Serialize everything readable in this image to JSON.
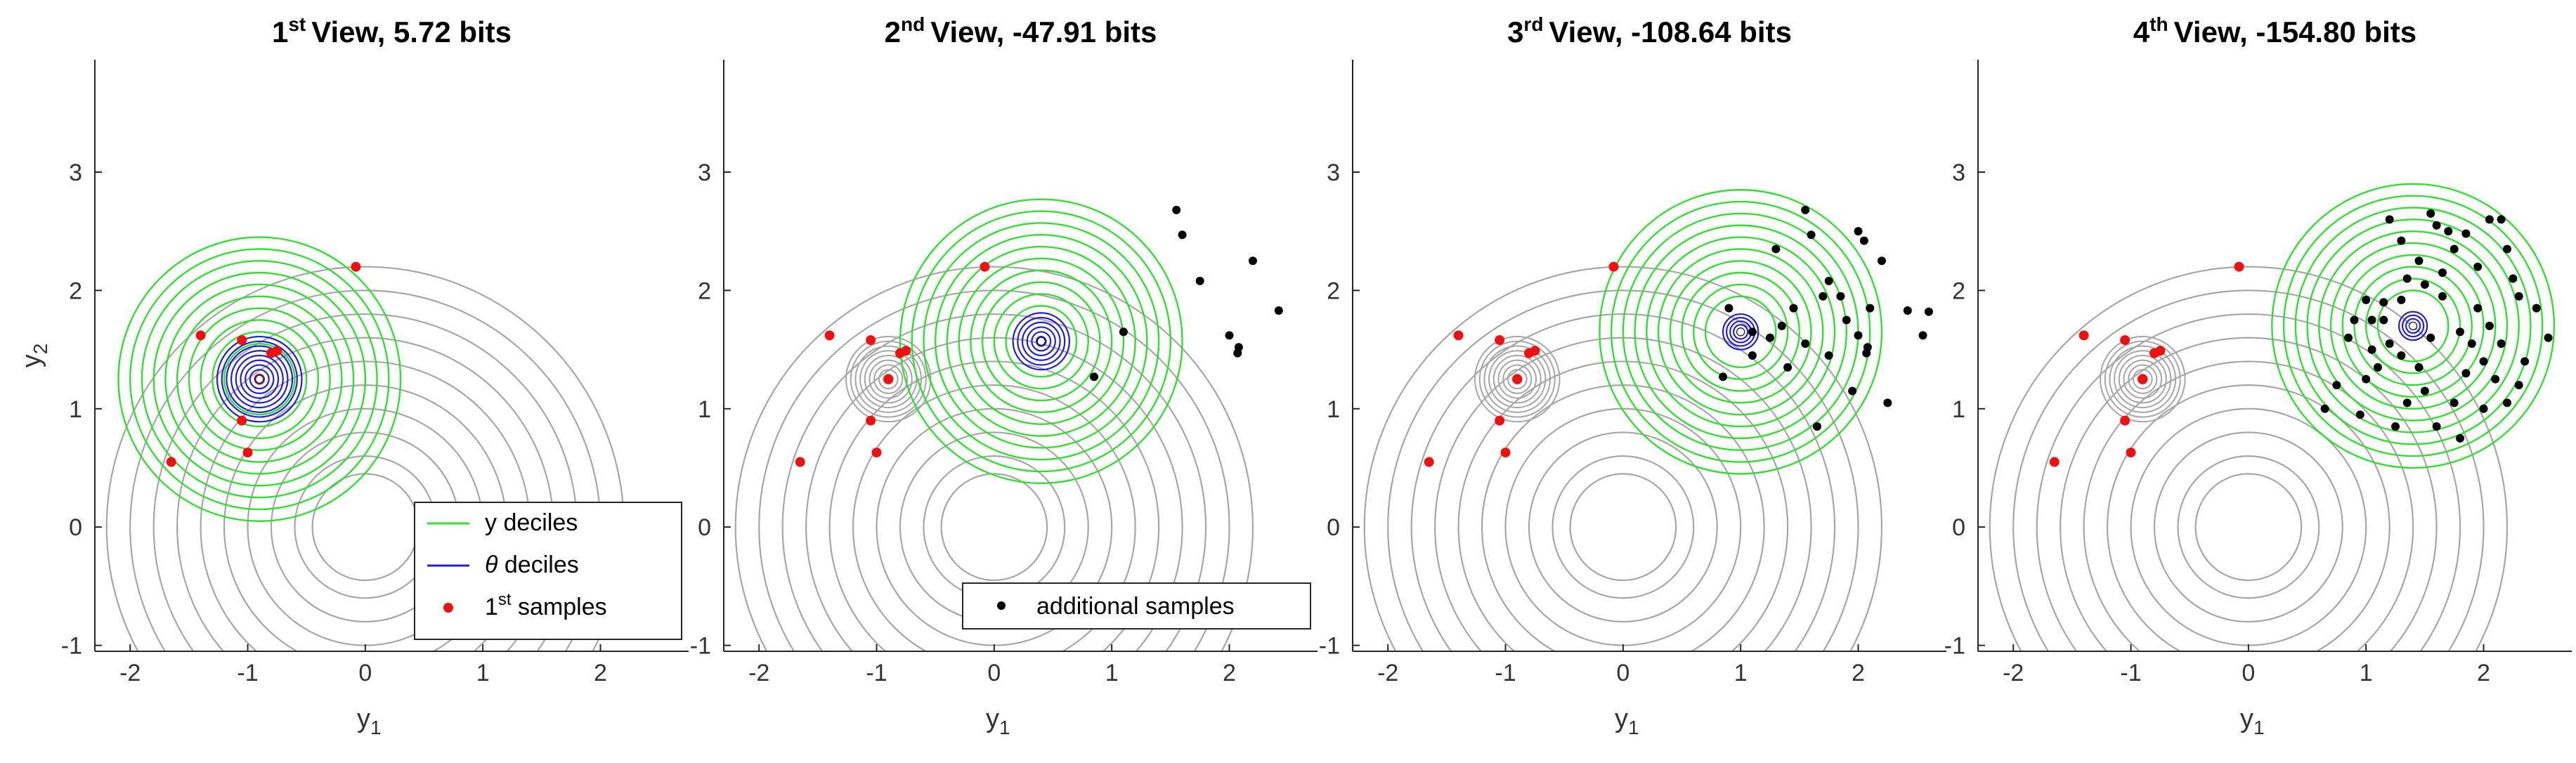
{
  "chart_data": [
    {
      "type": "scatter",
      "title": {
        "main": "View, 5.72 bits",
        "ordinal_num": "1",
        "ordinal_sup": "st"
      },
      "xlabel": "y_1",
      "ylabel": "y_2",
      "xlim": [
        -2.3,
        2.75
      ],
      "ylim": [
        -1.05,
        3.95
      ],
      "xticks": [
        -2,
        -1,
        0,
        1,
        2
      ],
      "yticks": [
        -1,
        0,
        1,
        2,
        3
      ],
      "show_xlabel": true,
      "show_ylabel": true,
      "grey_contours": {
        "center": [
          0,
          0
        ],
        "radii": [
          0.45,
          0.6,
          0.8,
          1.0,
          1.2,
          1.4,
          1.6,
          1.8,
          2.0,
          2.2
        ]
      },
      "small_grey": null,
      "green_contours": {
        "center": [
          -0.9,
          1.25
        ],
        "radii": [
          0.3,
          0.4,
          0.5,
          0.6,
          0.7,
          0.8,
          0.9,
          1.0,
          1.1,
          1.2
        ]
      },
      "blue_contours": {
        "center": [
          -0.9,
          1.25
        ],
        "radii": [
          0.04,
          0.08,
          0.12,
          0.16,
          0.2,
          0.24,
          0.28,
          0.32,
          0.36
        ]
      },
      "center_marker": [
        -0.9,
        1.25
      ],
      "red_points": [
        [
          -0.08,
          2.2
        ],
        [
          -1.4,
          1.62
        ],
        [
          -1.05,
          1.58
        ],
        [
          -0.75,
          1.49
        ],
        [
          -0.8,
          1.47
        ],
        [
          -1.05,
          0.9
        ],
        [
          -1.0,
          0.63
        ],
        [
          -1.65,
          0.55
        ],
        [
          -0.9,
          1.25
        ]
      ],
      "black_points": [],
      "legend": {
        "position": "bottom-right",
        "entries": [
          {
            "kind": "line",
            "color": "#33dd33",
            "label": "y deciles"
          },
          {
            "kind": "line",
            "color": "#2222cc",
            "label_prefix": "θ",
            "label": " deciles"
          },
          {
            "kind": "dot",
            "color": "#ee1111",
            "label_num": "1",
            "label_sup": "st",
            "label": " samples"
          }
        ]
      }
    },
    {
      "type": "scatter",
      "title": {
        "main": "View, -47.91 bits",
        "ordinal_num": "2",
        "ordinal_sup": "nd"
      },
      "xlabel": "y_1",
      "ylabel": "",
      "xlim": [
        -2.3,
        2.75
      ],
      "ylim": [
        -1.05,
        3.95
      ],
      "xticks": [
        -2,
        -1,
        0,
        1,
        2
      ],
      "yticks": [
        -1,
        0,
        1,
        2,
        3
      ],
      "show_xlabel": true,
      "show_ylabel": false,
      "grey_contours": {
        "center": [
          0,
          0
        ],
        "radii": [
          0.45,
          0.6,
          0.8,
          1.0,
          1.2,
          1.4,
          1.6,
          1.8,
          2.0,
          2.2
        ]
      },
      "small_grey": {
        "center": [
          -0.9,
          1.25
        ],
        "radii": [
          0.04,
          0.08,
          0.12,
          0.16,
          0.2,
          0.24,
          0.28,
          0.32,
          0.36
        ]
      },
      "green_contours": {
        "center": [
          0.4,
          1.57
        ],
        "radii": [
          0.3,
          0.4,
          0.5,
          0.6,
          0.7,
          0.8,
          0.9,
          1.0,
          1.1,
          1.2
        ]
      },
      "blue_contours": {
        "center": [
          0.4,
          1.57
        ],
        "radii": [
          0.04,
          0.08,
          0.12,
          0.16,
          0.2,
          0.24
        ]
      },
      "center_marker": [
        0.4,
        1.57
      ],
      "red_points": [
        [
          -0.08,
          2.2
        ],
        [
          -1.4,
          1.62
        ],
        [
          -1.05,
          1.58
        ],
        [
          -0.75,
          1.49
        ],
        [
          -0.8,
          1.47
        ],
        [
          -1.05,
          0.9
        ],
        [
          -1.0,
          0.63
        ],
        [
          -1.65,
          0.55
        ],
        [
          -0.9,
          1.25
        ]
      ],
      "black_points": [
        [
          1.55,
          2.68
        ],
        [
          1.6,
          2.47
        ],
        [
          1.75,
          2.08
        ],
        [
          2.2,
          2.25
        ],
        [
          2.42,
          1.83
        ],
        [
          2.0,
          1.62
        ],
        [
          2.08,
          1.52
        ],
        [
          2.07,
          1.47
        ],
        [
          1.1,
          1.65
        ],
        [
          0.85,
          1.27
        ]
      ],
      "legend": {
        "position": "bottom-right",
        "entries": [
          {
            "kind": "dot",
            "color": "#000000",
            "label": "additional samples"
          }
        ]
      }
    },
    {
      "type": "scatter",
      "title": {
        "main": "View, -108.64 bits",
        "ordinal_num": "3",
        "ordinal_sup": "rd"
      },
      "xlabel": "y_1",
      "ylabel": "",
      "xlim": [
        -2.3,
        2.75
      ],
      "ylim": [
        -1.05,
        3.95
      ],
      "xticks": [
        -2,
        -1,
        0,
        1,
        2
      ],
      "yticks": [
        -1,
        0,
        1,
        2,
        3
      ],
      "show_xlabel": true,
      "show_ylabel": false,
      "grey_contours": {
        "center": [
          0,
          0
        ],
        "radii": [
          0.45,
          0.6,
          0.8,
          1.0,
          1.2,
          1.4,
          1.6,
          1.8,
          2.0,
          2.2
        ]
      },
      "small_grey": {
        "center": [
          -0.9,
          1.25
        ],
        "radii": [
          0.04,
          0.08,
          0.12,
          0.16,
          0.2,
          0.24,
          0.28,
          0.32,
          0.36
        ]
      },
      "green_contours": {
        "center": [
          1.0,
          1.65
        ],
        "radii": [
          0.3,
          0.4,
          0.5,
          0.6,
          0.7,
          0.8,
          0.9,
          1.0,
          1.1,
          1.2
        ]
      },
      "blue_contours": {
        "center": [
          1.0,
          1.65
        ],
        "radii": [
          0.03,
          0.06,
          0.09,
          0.12,
          0.15
        ]
      },
      "center_marker": [
        1.0,
        1.65
      ],
      "red_points": [
        [
          -0.08,
          2.2
        ],
        [
          -1.4,
          1.62
        ],
        [
          -1.05,
          1.58
        ],
        [
          -0.75,
          1.49
        ],
        [
          -0.8,
          1.47
        ],
        [
          -1.05,
          0.9
        ],
        [
          -1.0,
          0.63
        ],
        [
          -1.65,
          0.55
        ],
        [
          -0.9,
          1.25
        ]
      ],
      "black_points": [
        [
          1.55,
          2.68
        ],
        [
          1.6,
          2.47
        ],
        [
          1.75,
          2.08
        ],
        [
          2.2,
          2.25
        ],
        [
          2.42,
          1.83
        ],
        [
          2.0,
          1.62
        ],
        [
          2.08,
          1.52
        ],
        [
          2.07,
          1.47
        ],
        [
          1.1,
          1.65
        ],
        [
          0.85,
          1.27
        ],
        [
          1.3,
          2.35
        ],
        [
          1.45,
          1.85
        ],
        [
          1.7,
          1.95
        ],
        [
          1.85,
          1.95
        ],
        [
          1.9,
          1.75
        ],
        [
          2.0,
          2.5
        ],
        [
          2.05,
          2.42
        ],
        [
          2.1,
          1.85
        ],
        [
          1.55,
          1.55
        ],
        [
          1.75,
          1.45
        ],
        [
          1.95,
          1.15
        ],
        [
          2.6,
          1.82
        ],
        [
          2.55,
          1.62
        ],
        [
          2.25,
          1.05
        ],
        [
          1.35,
          1.7
        ],
        [
          0.9,
          1.85
        ],
        [
          1.4,
          1.35
        ],
        [
          1.65,
          0.85
        ],
        [
          1.1,
          1.45
        ],
        [
          1.25,
          1.6
        ]
      ],
      "legend": null
    },
    {
      "type": "scatter",
      "title": {
        "main": "View, -154.80 bits",
        "ordinal_num": "4",
        "ordinal_sup": "th"
      },
      "xlabel": "y_1",
      "ylabel": "",
      "xlim": [
        -2.3,
        2.75
      ],
      "ylim": [
        -1.05,
        3.95
      ],
      "xticks": [
        -2,
        -1,
        0,
        1,
        2
      ],
      "yticks": [
        -1,
        0,
        1,
        2,
        3
      ],
      "show_xlabel": true,
      "show_ylabel": false,
      "grey_contours": {
        "center": [
          0,
          0
        ],
        "radii": [
          0.45,
          0.6,
          0.8,
          1.0,
          1.2,
          1.4,
          1.6,
          1.8,
          2.0,
          2.2
        ]
      },
      "small_grey": {
        "center": [
          -0.9,
          1.25
        ],
        "radii": [
          0.04,
          0.08,
          0.12,
          0.16,
          0.2,
          0.24,
          0.28,
          0.32,
          0.36
        ]
      },
      "green_contours": {
        "center": [
          1.4,
          1.7
        ],
        "radii": [
          0.3,
          0.4,
          0.5,
          0.6,
          0.7,
          0.8,
          0.9,
          1.0,
          1.1,
          1.2
        ]
      },
      "blue_contours": {
        "center": [
          1.4,
          1.7
        ],
        "radii": [
          0.03,
          0.06,
          0.09,
          0.12
        ]
      },
      "center_marker": [
        1.4,
        1.7
      ],
      "red_points": [
        [
          -0.08,
          2.2
        ],
        [
          -1.4,
          1.62
        ],
        [
          -1.05,
          1.58
        ],
        [
          -0.75,
          1.49
        ],
        [
          -0.8,
          1.47
        ],
        [
          -1.05,
          0.9
        ],
        [
          -1.0,
          0.63
        ],
        [
          -1.65,
          0.55
        ],
        [
          -0.9,
          1.25
        ]
      ],
      "black_points": [
        [
          1.0,
          1.92
        ],
        [
          1.05,
          1.75
        ],
        [
          1.15,
          1.9
        ],
        [
          1.2,
          2.6
        ],
        [
          1.3,
          2.42
        ],
        [
          1.35,
          2.1
        ],
        [
          1.45,
          2.25
        ],
        [
          1.5,
          2.05
        ],
        [
          1.55,
          2.65
        ],
        [
          1.6,
          2.55
        ],
        [
          1.7,
          2.5
        ],
        [
          1.75,
          2.35
        ],
        [
          1.85,
          2.48
        ],
        [
          1.95,
          2.2
        ],
        [
          2.05,
          2.6
        ],
        [
          2.15,
          2.6
        ],
        [
          2.2,
          2.35
        ],
        [
          2.25,
          2.1
        ],
        [
          2.3,
          1.95
        ],
        [
          2.45,
          1.85
        ],
        [
          2.55,
          1.6
        ],
        [
          2.35,
          1.4
        ],
        [
          2.3,
          1.2
        ],
        [
          2.2,
          1.05
        ],
        [
          2.1,
          1.25
        ],
        [
          2.0,
          1.4
        ],
        [
          1.9,
          1.55
        ],
        [
          1.8,
          1.65
        ],
        [
          1.85,
          1.3
        ],
        [
          1.75,
          1.05
        ],
        [
          1.6,
          0.85
        ],
        [
          1.5,
          1.15
        ],
        [
          1.45,
          1.35
        ],
        [
          1.3,
          1.45
        ],
        [
          1.2,
          1.55
        ],
        [
          1.1,
          1.35
        ],
        [
          1.05,
          1.5
        ],
        [
          1.0,
          1.25
        ],
        [
          0.9,
          1.75
        ],
        [
          0.85,
          1.6
        ],
        [
          0.75,
          1.2
        ],
        [
          0.65,
          1.0
        ],
        [
          0.95,
          0.95
        ],
        [
          1.25,
          0.85
        ],
        [
          1.35,
          1.05
        ],
        [
          1.65,
          1.95
        ],
        [
          1.95,
          1.85
        ],
        [
          2.05,
          1.7
        ],
        [
          2.15,
          1.55
        ],
        [
          1.55,
          1.6
        ],
        [
          1.15,
          1.75
        ],
        [
          1.65,
          2.15
        ],
        [
          1.3,
          1.92
        ],
        [
          2.0,
          1.0
        ],
        [
          1.8,
          0.75
        ]
      ],
      "legend": null
    }
  ]
}
